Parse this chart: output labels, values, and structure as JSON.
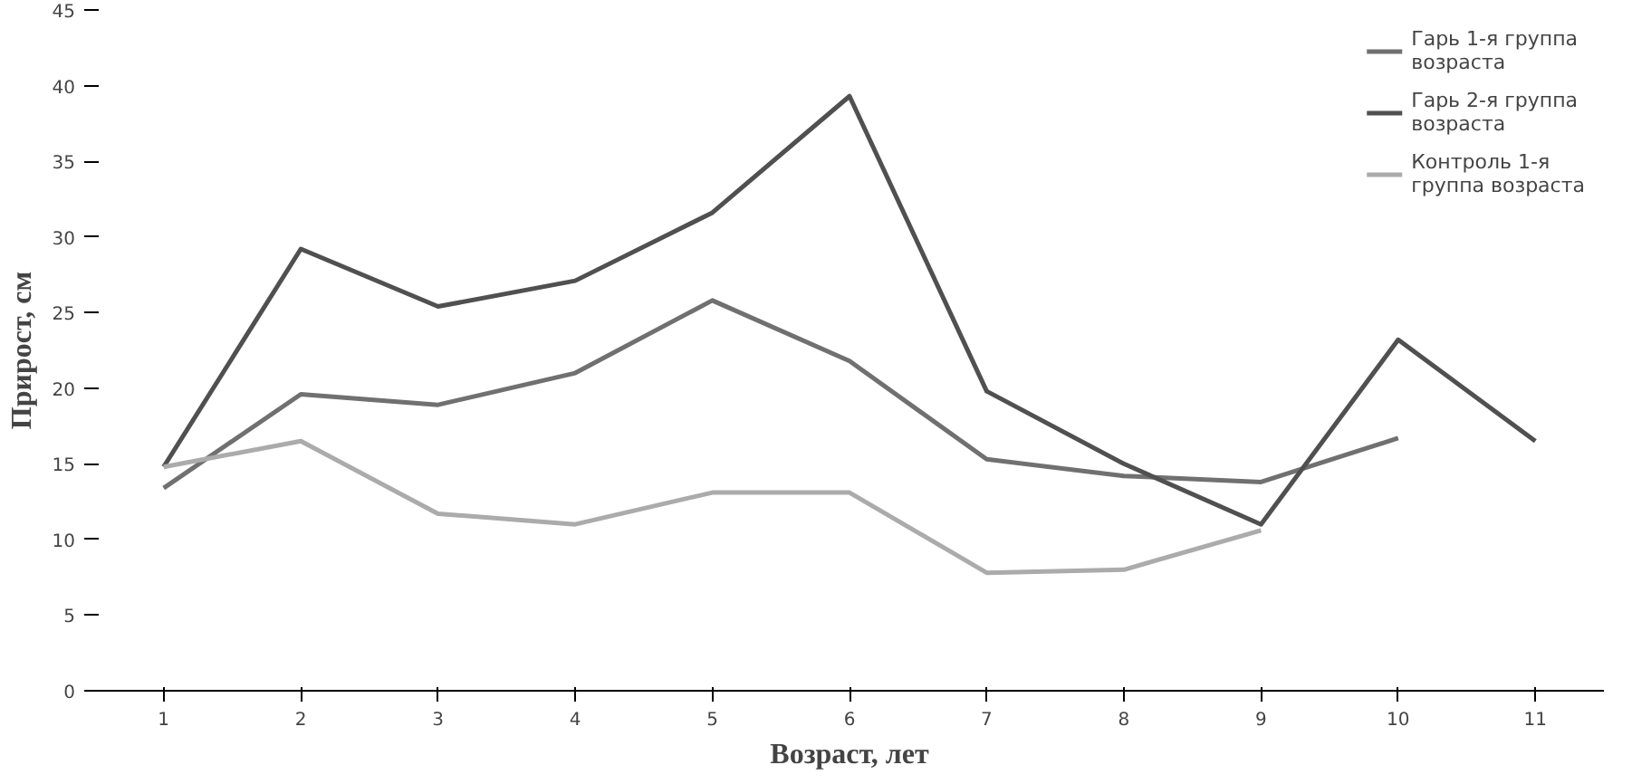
{
  "chart_data": {
    "type": "line",
    "xlabel": "Возраст, лет",
    "ylabel": "Прирост, см",
    "categories": [
      "1",
      "2",
      "3",
      "4",
      "5",
      "6",
      "7",
      "8",
      "9",
      "10",
      "11"
    ],
    "series": [
      {
        "name": "Гарь 1-я группа возраста",
        "color": "#707070",
        "values": [
          13.4,
          19.6,
          18.9,
          21.0,
          25.8,
          21.8,
          15.3,
          14.2,
          13.8,
          16.7,
          null
        ]
      },
      {
        "name": "Гарь 2-я группа возраста",
        "color": "#505050",
        "values": [
          14.8,
          29.2,
          25.4,
          27.1,
          31.6,
          39.3,
          19.8,
          15.0,
          11.0,
          23.2,
          16.5
        ]
      },
      {
        "name": "Контроль 1-я группа возраста",
        "color": "#ababab",
        "values": [
          14.8,
          16.5,
          11.7,
          11.0,
          13.1,
          13.1,
          7.8,
          8.0,
          10.6,
          null,
          null
        ]
      }
    ],
    "ylim": [
      0,
      45
    ],
    "yticks": [
      0,
      5,
      10,
      15,
      20,
      25,
      30,
      35,
      40,
      45
    ],
    "grid": false,
    "legend": "top right",
    "marker": "none",
    "line_style": "solid"
  }
}
